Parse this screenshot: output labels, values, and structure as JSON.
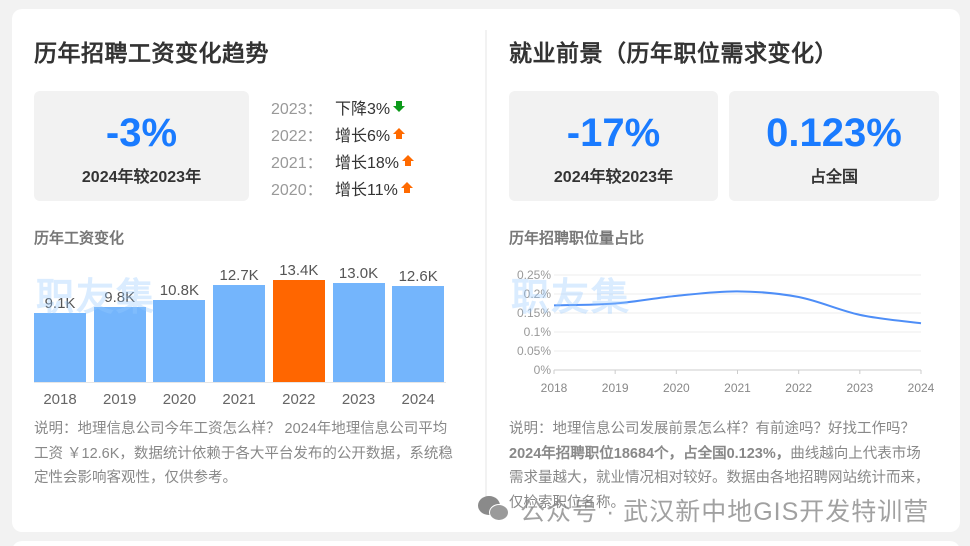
{
  "left_panel": {
    "title": "历年招聘工资变化趋势",
    "stat": {
      "value": "-3%",
      "label": "2024年较2023年"
    },
    "yoy": [
      {
        "year": "2023：",
        "text": "下降3%",
        "direction": "down"
      },
      {
        "year": "2022：",
        "text": "增长6%",
        "direction": "up"
      },
      {
        "year": "2021：",
        "text": "增长18%",
        "direction": "up"
      },
      {
        "year": "2020：",
        "text": "增长11%",
        "direction": "up"
      }
    ],
    "chart_title": "历年工资变化",
    "watermark": "职友集",
    "description": "说明：地理信息公司今年工资怎么样？ 2024年地理信息公司平均工资 ￥12.6K，数据统计依赖于各大平台发布的公开数据，系统稳定性会影响客观性，仅供参考。"
  },
  "right_panel": {
    "title": "就业前景（历年职位需求变化）",
    "stats": [
      {
        "value": "-17%",
        "label": "2024年较2023年"
      },
      {
        "value": "0.123%",
        "label": "占全国"
      }
    ],
    "chart_title": "历年招聘职位量占比",
    "watermark": "职友集",
    "description_pre": "说明：地理信息公司发展前景怎么样？有前途吗？好找工作吗？ ",
    "description_bold": "2024年招聘职位18684个，占全国0.123%，",
    "description_post": "曲线越向上代表市场需求量越大，就业情况相对较好。数据由各地招聘网站统计而来，仅检索职位名称。"
  },
  "footer_watermark": "公众号 · 武汉新中地GIS开发特训营",
  "colors": {
    "accent_blue": "#1a7bff",
    "bar_blue": "#74b5fc",
    "bar_highlight": "#ff6600",
    "line_blue": "#4e8ef7",
    "up_arrow": "#ff6a00",
    "down_arrow": "#0d9a1b"
  },
  "chart_data": [
    {
      "type": "bar",
      "title": "历年工资变化",
      "categories": [
        "2018",
        "2019",
        "2020",
        "2021",
        "2022",
        "2023",
        "2024"
      ],
      "values": [
        9.1,
        9.8,
        10.8,
        12.7,
        13.4,
        13.0,
        12.6
      ],
      "labels": [
        "9.1K",
        "9.8K",
        "10.8K",
        "12.7K",
        "13.4K",
        "13.0K",
        "12.6K"
      ],
      "highlight_index": 4,
      "xlabel": "",
      "ylabel": "",
      "unit": "K",
      "grid": false
    },
    {
      "type": "line",
      "title": "历年招聘职位量占比",
      "x": [
        "2018",
        "2019",
        "2020",
        "2021",
        "2022",
        "2023",
        "2024"
      ],
      "series": [
        {
          "name": "职位量占比",
          "values": [
            0.17,
            0.175,
            0.195,
            0.207,
            0.192,
            0.145,
            0.123
          ]
        }
      ],
      "yticks": [
        "0%",
        "0.05%",
        "0.1%",
        "0.15%",
        "0.2%",
        "0.25%"
      ],
      "ylim": [
        0,
        0.25
      ],
      "unit": "%",
      "grid": true,
      "smooth": true
    }
  ]
}
